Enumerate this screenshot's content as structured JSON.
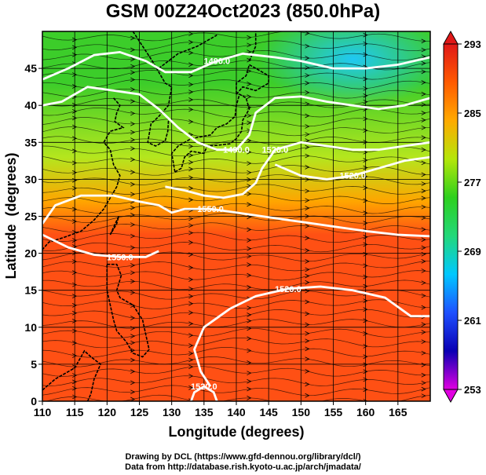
{
  "title": "GSM 00Z24Oct2023 (850.0hPa)",
  "credits": [
    "Drawing by DCL (https://www.gfd-dennou.org/library/dcl/)",
    "Data from http://database.rish.kyoto-u.ac.jp/arch/jmadata/"
  ],
  "chart_data": {
    "type": "heatmap",
    "title": "GSM 00Z24Oct2023 (850.0hPa)",
    "xlabel": "Longitude (degrees)",
    "ylabel": "Latitude  (degrees)",
    "xlim": [
      110,
      170
    ],
    "ylim": [
      0,
      50
    ],
    "x_ticks": [
      110,
      115,
      120,
      125,
      130,
      135,
      140,
      145,
      150,
      155,
      160,
      165
    ],
    "y_ticks": [
      0,
      5,
      10,
      15,
      20,
      25,
      30,
      35,
      40,
      45
    ],
    "grid": true,
    "colorbar": {
      "ticks": [
        253,
        261,
        269,
        277,
        285,
        293
      ],
      "range": [
        253,
        293
      ],
      "colors": [
        "#e100e1",
        "#0a00b4",
        "#1e50ff",
        "#00c8ff",
        "#22d87a",
        "#2ed01e",
        "#b4e60a",
        "#ffaa00",
        "#ff5a00",
        "#e01818"
      ]
    },
    "field_colors": {
      "cold": "#1ec8ff",
      "cool": "#3ccd2a",
      "mild": "#b4e61e",
      "warm": "#ffa500",
      "hot": "#ff5014"
    },
    "contours": [
      {
        "label": "1490.0",
        "points": [
          [
            110,
            43.5
          ],
          [
            114,
            45
          ],
          [
            118,
            46.8
          ],
          [
            122,
            47.2
          ],
          [
            126,
            46
          ],
          [
            129,
            44.5
          ],
          [
            133,
            44.5
          ],
          [
            137,
            46
          ],
          [
            141,
            47
          ],
          [
            146,
            46.5
          ],
          [
            150,
            46
          ],
          [
            155,
            45
          ],
          [
            160,
            45
          ],
          [
            165,
            45.5
          ],
          [
            170,
            46.5
          ]
        ]
      },
      {
        "label": "1490.0",
        "points": [
          [
            110,
            40
          ],
          [
            113,
            40.5
          ],
          [
            117,
            42.5
          ],
          [
            121,
            42
          ],
          [
            125,
            41.5
          ],
          [
            128,
            39.5
          ],
          [
            131,
            37
          ],
          [
            134,
            35
          ],
          [
            137,
            34
          ],
          [
            140,
            34
          ],
          [
            142,
            36
          ],
          [
            143,
            39
          ],
          [
            146,
            41
          ],
          [
            150,
            41.2
          ],
          [
            154,
            40.5
          ],
          [
            158,
            40
          ],
          [
            162,
            39.5
          ],
          [
            166,
            40
          ],
          [
            170,
            41
          ]
        ]
      },
      {
        "label": "1520.0",
        "points": [
          [
            146,
            32
          ],
          [
            150,
            30.5
          ],
          [
            154,
            30
          ],
          [
            158,
            30.5
          ],
          [
            162,
            31.5
          ],
          [
            166,
            32.5
          ],
          [
            170,
            33
          ]
        ]
      },
      {
        "label": "1520.0",
        "points": [
          [
            129,
            29
          ],
          [
            132,
            28.5
          ],
          [
            135,
            27.8
          ],
          [
            138,
            27.5
          ],
          [
            141,
            28
          ],
          [
            143,
            29.5
          ],
          [
            144,
            31.5
          ],
          [
            146,
            34
          ],
          [
            150,
            35
          ],
          [
            154,
            34.5
          ],
          [
            158,
            34
          ],
          [
            162,
            34
          ],
          [
            166,
            34.5
          ],
          [
            170,
            35
          ]
        ]
      },
      {
        "label": "1550.0",
        "points": [
          [
            110,
            24
          ],
          [
            112,
            26.5
          ],
          [
            116,
            27.8
          ],
          [
            121,
            27.8
          ],
          [
            125,
            27
          ],
          [
            128,
            26.5
          ],
          [
            130,
            25.5
          ],
          [
            132,
            26
          ],
          [
            136,
            26
          ],
          [
            140,
            25.5
          ],
          [
            144,
            25
          ],
          [
            148,
            24.5
          ],
          [
            152,
            24
          ],
          [
            156,
            23.5
          ],
          [
            160,
            23
          ],
          [
            165,
            22.5
          ],
          [
            170,
            22.3
          ]
        ]
      },
      {
        "label": "1550.0",
        "points": [
          [
            110,
            22.5
          ],
          [
            114,
            20.8
          ],
          [
            118,
            19.8
          ],
          [
            122,
            19.5
          ],
          [
            126,
            19.5
          ],
          [
            128,
            20.3
          ]
        ]
      },
      {
        "label": "1520.0",
        "points": [
          [
            136,
            2
          ],
          [
            134.5,
            4
          ],
          [
            133.5,
            7
          ],
          [
            135,
            10
          ],
          [
            139,
            12.5
          ],
          [
            143,
            14.2
          ],
          [
            148,
            15.2
          ],
          [
            153,
            15.5
          ],
          [
            158,
            15
          ],
          [
            163,
            14
          ],
          [
            167,
            11.5
          ],
          [
            170,
            11.5
          ]
        ]
      },
      {
        "label": "1520.0",
        "points": [
          [
            133,
            0
          ],
          [
            133.5,
            1.2
          ],
          [
            135,
            2
          ],
          [
            136.5,
            1.2
          ],
          [
            137,
            0
          ]
        ]
      }
    ]
  }
}
